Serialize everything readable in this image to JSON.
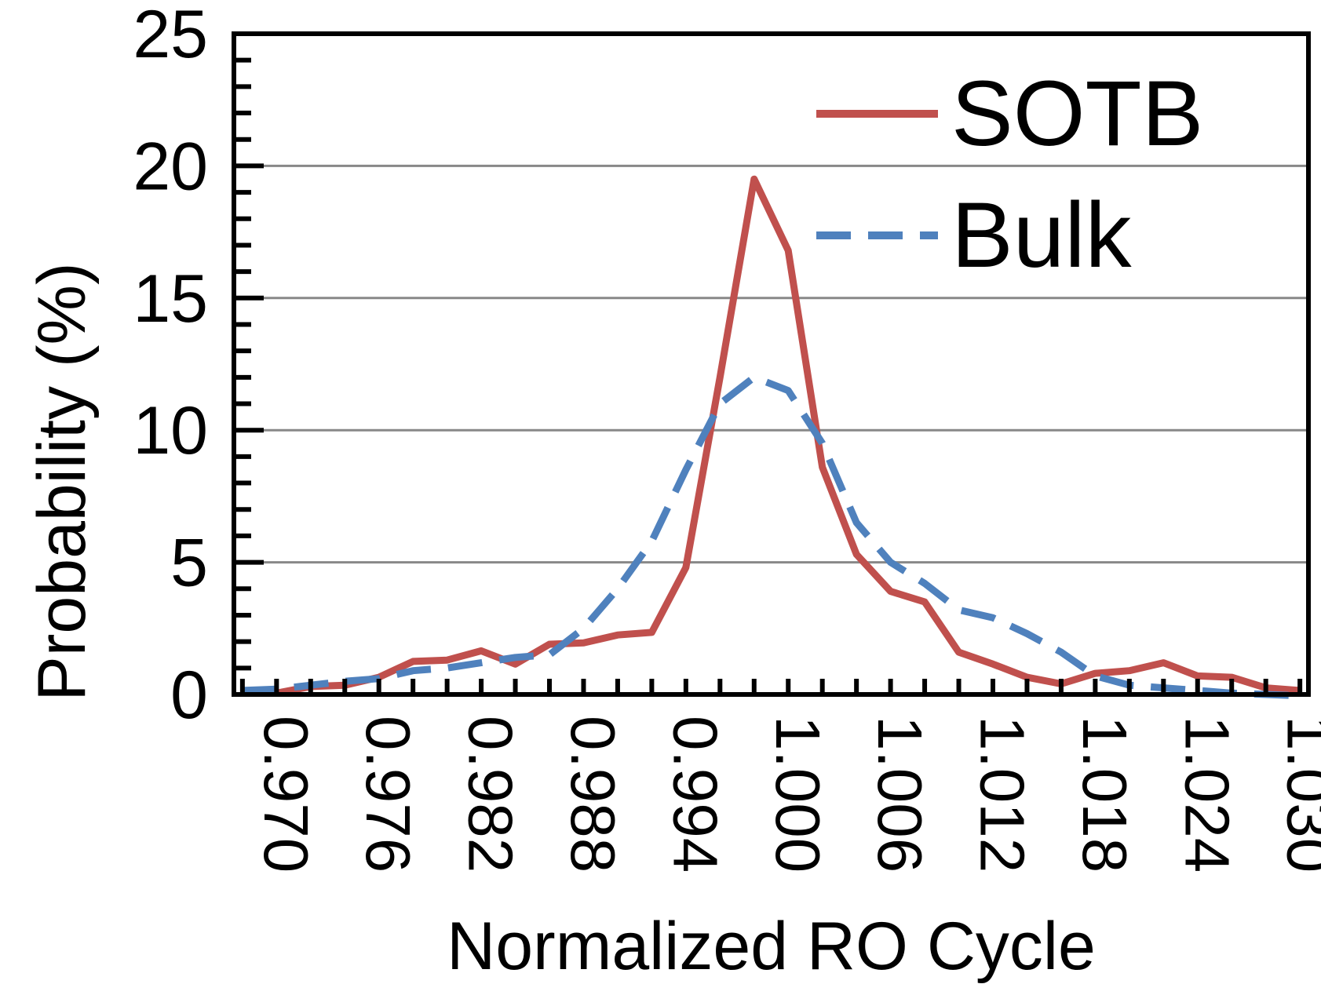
{
  "chart_data": {
    "type": "line",
    "title": "",
    "xlabel": "Normalized RO Cycle",
    "ylabel": "Probability (%)",
    "xlim": [
      0.9695,
      1.0325
    ],
    "ylim": [
      0,
      25
    ],
    "yticks": [
      0,
      5,
      10,
      15,
      20,
      25
    ],
    "xtick_values": [
      0.97,
      0.976,
      0.982,
      0.988,
      0.994,
      1.0,
      1.006,
      1.012,
      1.018,
      1.024,
      1.03
    ],
    "xtick_labels": [
      "0.970",
      "0.976",
      "0.982",
      "0.988",
      "0.994",
      "1.000",
      "1.006",
      "1.012",
      "1.018",
      "1.024",
      "1.030"
    ],
    "grid": "horizontal",
    "legend_position": "top-right",
    "x": [
      0.97,
      0.972,
      0.974,
      0.976,
      0.978,
      0.98,
      0.982,
      0.984,
      0.986,
      0.988,
      0.99,
      0.992,
      0.994,
      0.996,
      0.998,
      1.0,
      1.002,
      1.004,
      1.006,
      1.008,
      1.01,
      1.012,
      1.014,
      1.016,
      1.018,
      1.02,
      1.022,
      1.024,
      1.026,
      1.028,
      1.03,
      1.032
    ],
    "series": [
      {
        "name": "SOTB",
        "color": "#c0504d",
        "style": "solid",
        "values": [
          0.05,
          0.05,
          0.3,
          0.35,
          0.65,
          1.25,
          1.3,
          1.65,
          1.15,
          1.9,
          1.95,
          2.25,
          2.35,
          4.8,
          12.0,
          19.5,
          16.8,
          8.6,
          5.3,
          3.9,
          3.5,
          1.6,
          1.15,
          0.65,
          0.4,
          0.8,
          0.9,
          1.2,
          0.7,
          0.65,
          0.25,
          0.15
        ]
      },
      {
        "name": "Bulk",
        "color": "#4f81bd",
        "style": "dashed",
        "values": [
          0.15,
          0.2,
          0.35,
          0.5,
          0.6,
          0.9,
          1.0,
          1.2,
          1.4,
          1.5,
          2.5,
          4.0,
          5.8,
          8.5,
          11.0,
          12.0,
          11.5,
          9.5,
          6.5,
          5.0,
          4.2,
          3.2,
          2.9,
          2.3,
          1.6,
          0.7,
          0.35,
          0.25,
          0.15,
          0.05,
          0.0,
          -0.05
        ]
      }
    ]
  }
}
